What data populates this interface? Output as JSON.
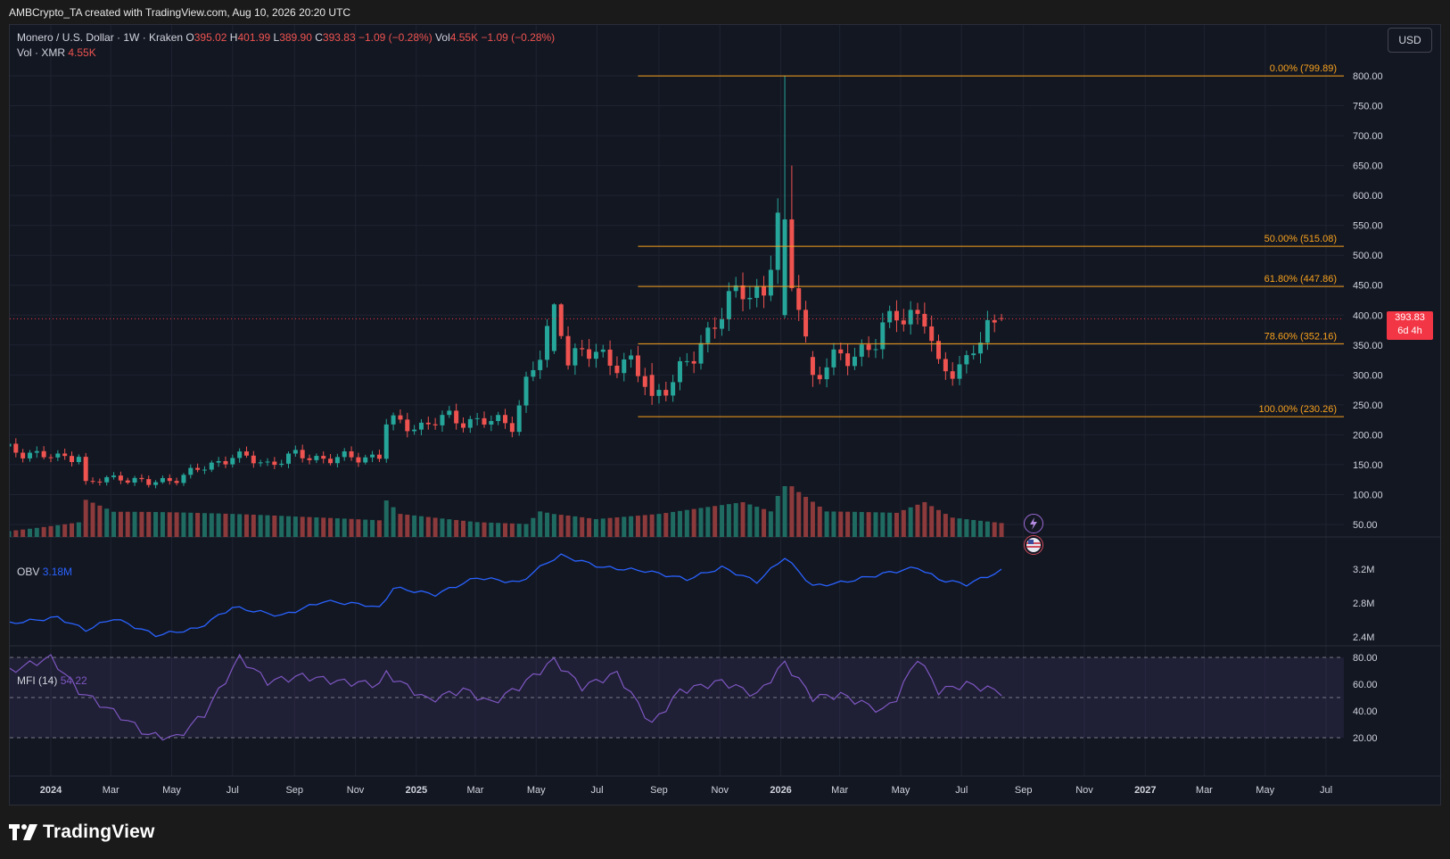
{
  "header": {
    "attribution": "AMBCrypto_TA created with TradingView.com, Aug 10, 2026 20:20 UTC"
  },
  "legend": {
    "symbol": "Monero / U.S. Dollar · 1W · Kraken",
    "o_label": "O",
    "o_value": "395.02",
    "h_label": "H",
    "h_value": "401.99",
    "l_label": "L",
    "l_value": "389.90",
    "c_label": "C",
    "c_value": "393.83",
    "change": "−1.09 (−0.28%)",
    "vol_label": "Vol",
    "vol_value": "4.55K",
    "vol_change": "−1.09 (−0.28%)",
    "vol_series_label": "Vol · XMR",
    "vol_series_value": "4.55K",
    "obv_label": "OBV",
    "obv_value": "3.18M",
    "mfi_label": "MFI (14)",
    "mfi_value": "54.22"
  },
  "currency_button": "USD",
  "price_badge": {
    "price": "393.83",
    "countdown": "6d 4h"
  },
  "logo_text": "TradingView",
  "colors": {
    "background": "#131722",
    "up": "#26a69a",
    "down": "#ef5350",
    "fib": "#f7a11d",
    "obv": "#2962ff",
    "mfi": "#7e57c2",
    "badge": "#f23645"
  },
  "chart_data": {
    "type": "candlestick",
    "symbol": "Monero / U.S. Dollar",
    "interval": "1W",
    "exchange": "Kraken",
    "price_axis": {
      "ticks": [
        "800.00",
        "750.00",
        "700.00",
        "650.00",
        "600.00",
        "550.00",
        "500.00",
        "450.00",
        "400.00",
        "350.00",
        "300.00",
        "250.00",
        "200.00",
        "150.00",
        "100.00",
        "50.00"
      ]
    },
    "x_axis_labels": [
      {
        "label": "2024",
        "date": "2024-01-01",
        "bold": true
      },
      {
        "label": "Mar",
        "date": "2024-03-01"
      },
      {
        "label": "May",
        "date": "2024-05-01"
      },
      {
        "label": "Jul",
        "date": "2024-07-01"
      },
      {
        "label": "Sep",
        "date": "2024-09-01"
      },
      {
        "label": "Nov",
        "date": "2024-11-01"
      },
      {
        "label": "2025",
        "date": "2025-01-01",
        "bold": true
      },
      {
        "label": "Mar",
        "date": "2025-03-01"
      },
      {
        "label": "May",
        "date": "2025-05-01"
      },
      {
        "label": "Jul",
        "date": "2025-07-01"
      },
      {
        "label": "Sep",
        "date": "2025-09-01"
      },
      {
        "label": "Nov",
        "date": "2025-11-01"
      },
      {
        "label": "2026",
        "date": "2026-01-01",
        "bold": true
      },
      {
        "label": "Mar",
        "date": "2026-03-01"
      },
      {
        "label": "May",
        "date": "2026-05-01"
      },
      {
        "label": "Jul",
        "date": "2026-07-01"
      },
      {
        "label": "Sep",
        "date": "2026-09-01"
      },
      {
        "label": "Nov",
        "date": "2026-11-01"
      },
      {
        "label": "2027",
        "date": "2027-01-01",
        "bold": true
      },
      {
        "label": "Mar",
        "date": "2027-03-01"
      },
      {
        "label": "May",
        "date": "2027-05-01"
      },
      {
        "label": "Jul",
        "date": "2027-07-01"
      }
    ],
    "fib_levels": [
      {
        "label": "0.00% (799.89)",
        "price": 799.89
      },
      {
        "label": "50.00% (515.08)",
        "price": 515.08
      },
      {
        "label": "61.80% (447.86)",
        "price": 447.86
      },
      {
        "label": "78.60% (352.16)",
        "price": 352.16
      },
      {
        "label": "100.00% (230.26)",
        "price": 230.26
      }
    ],
    "fib_start_date": "2025-08-11",
    "candle_keyframes": [
      [
        "2023-11-13",
        176
      ],
      [
        "2023-12-11",
        170
      ],
      [
        "2024-01-08",
        160
      ],
      [
        "2024-01-29",
        168
      ],
      [
        "2024-02-05",
        118
      ],
      [
        "2024-03-11",
        130
      ],
      [
        "2024-04-08",
        118
      ],
      [
        "2024-05-06",
        128
      ],
      [
        "2024-06-03",
        145
      ],
      [
        "2024-07-01",
        165
      ],
      [
        "2024-08-05",
        152
      ],
      [
        "2024-09-02",
        165
      ],
      [
        "2024-10-07",
        160
      ],
      [
        "2024-11-04",
        162
      ],
      [
        "2024-11-25",
        165
      ],
      [
        "2024-12-02",
        220
      ],
      [
        "2025-01-06",
        215
      ],
      [
        "2025-02-03",
        228
      ],
      [
        "2025-03-03",
        222
      ],
      [
        "2025-04-07",
        220
      ],
      [
        "2025-04-21",
        285
      ],
      [
        "2025-05-05",
        330
      ],
      [
        "2025-05-19",
        405
      ],
      [
        "2025-06-02",
        330
      ],
      [
        "2025-06-30",
        335
      ],
      [
        "2025-08-04",
        315
      ],
      [
        "2025-08-25",
        270
      ],
      [
        "2025-09-15",
        290
      ],
      [
        "2025-10-06",
        330
      ],
      [
        "2025-10-27",
        395
      ],
      [
        "2025-11-24",
        440
      ],
      [
        "2025-12-15",
        440
      ],
      [
        "2025-12-29",
        555
      ],
      [
        "2026-01-12",
        545
      ],
      [
        "2026-01-19",
        430
      ],
      [
        "2026-02-02",
        295
      ],
      [
        "2026-03-02",
        330
      ],
      [
        "2026-04-06",
        350
      ],
      [
        "2026-04-27",
        410
      ],
      [
        "2026-05-25",
        390
      ],
      [
        "2026-06-08",
        310
      ],
      [
        "2026-07-06",
        320
      ],
      [
        "2026-07-27",
        375
      ],
      [
        "2026-08-10",
        393.83
      ]
    ],
    "candle_overrides": [
      {
        "date": "2026-01-05",
        "open": 400,
        "high": 799.89,
        "low": 395,
        "close": 560
      },
      {
        "date": "2026-01-12",
        "open": 560,
        "high": 650,
        "low": 440,
        "close": 445
      },
      {
        "date": "2025-05-19",
        "open": 340,
        "high": 420,
        "low": 335,
        "close": 418
      },
      {
        "date": "2025-05-26",
        "open": 418,
        "high": 420,
        "low": 360,
        "close": 365
      },
      {
        "date": "2025-08-25",
        "open": 300,
        "high": 320,
        "low": 250,
        "close": 265
      },
      {
        "date": "2026-02-02",
        "open": 330,
        "high": 340,
        "low": 280,
        "close": 300
      }
    ],
    "volume_keyframes": [
      [
        "2023-11-13",
        12
      ],
      [
        "2024-01-29",
        28
      ],
      [
        "2024-02-05",
        70
      ],
      [
        "2024-03-04",
        45
      ],
      [
        "2024-06-03",
        38
      ],
      [
        "2024-09-02",
        32
      ],
      [
        "2024-11-25",
        28
      ],
      [
        "2024-12-02",
        62
      ],
      [
        "2024-12-16",
        40
      ],
      [
        "2025-03-03",
        30
      ],
      [
        "2025-04-21",
        30
      ],
      [
        "2025-05-05",
        58
      ],
      [
        "2025-05-19",
        50
      ],
      [
        "2025-06-30",
        35
      ],
      [
        "2025-09-01",
        40
      ],
      [
        "2025-11-24",
        55
      ],
      [
        "2025-12-22",
        40
      ],
      [
        "2026-01-05",
        88
      ],
      [
        "2026-01-19",
        70
      ],
      [
        "2026-02-16",
        40
      ],
      [
        "2026-04-27",
        40
      ],
      [
        "2026-05-25",
        60
      ],
      [
        "2026-06-22",
        35
      ],
      [
        "2026-08-10",
        28
      ]
    ],
    "obv_keyframes": [
      [
        "2023-11-13",
        2.55
      ],
      [
        "2024-01-08",
        2.63
      ],
      [
        "2024-02-05",
        2.48
      ],
      [
        "2024-03-04",
        2.62
      ],
      [
        "2024-04-15",
        2.42
      ],
      [
        "2024-05-27",
        2.5
      ],
      [
        "2024-07-01",
        2.75
      ],
      [
        "2024-08-19",
        2.65
      ],
      [
        "2024-09-30",
        2.82
      ],
      [
        "2024-11-11",
        2.78
      ],
      [
        "2024-11-25",
        2.74
      ],
      [
        "2024-12-09",
        2.98
      ],
      [
        "2025-01-20",
        2.9
      ],
      [
        "2025-03-03",
        3.1
      ],
      [
        "2025-04-14",
        3.04
      ],
      [
        "2025-05-12",
        3.28
      ],
      [
        "2025-05-26",
        3.36
      ],
      [
        "2025-07-07",
        3.22
      ],
      [
        "2025-08-18",
        3.18
      ],
      [
        "2025-09-29",
        3.08
      ],
      [
        "2025-11-03",
        3.22
      ],
      [
        "2025-12-08",
        3.05
      ],
      [
        "2026-01-05",
        3.34
      ],
      [
        "2026-02-02",
        3.0
      ],
      [
        "2026-03-02",
        3.04
      ],
      [
        "2026-04-20",
        3.16
      ],
      [
        "2026-05-18",
        3.22
      ],
      [
        "2026-06-08",
        3.08
      ],
      [
        "2026-07-06",
        3.02
      ],
      [
        "2026-08-10",
        3.18
      ]
    ],
    "obv_axis": [
      "3.2M",
      "2.8M",
      "2.4M"
    ],
    "mfi_keyframes": [
      [
        "2023-11-13",
        68
      ],
      [
        "2024-01-01",
        80
      ],
      [
        "2024-01-29",
        55
      ],
      [
        "2024-03-11",
        36
      ],
      [
        "2024-04-08",
        22
      ],
      [
        "2024-05-06",
        20
      ],
      [
        "2024-06-03",
        38
      ],
      [
        "2024-07-08",
        80
      ],
      [
        "2024-08-05",
        62
      ],
      [
        "2024-09-09",
        66
      ],
      [
        "2024-10-14",
        62
      ],
      [
        "2024-11-25",
        60
      ],
      [
        "2024-12-02",
        68
      ],
      [
        "2025-01-13",
        48
      ],
      [
        "2025-02-17",
        56
      ],
      [
        "2025-03-17",
        46
      ],
      [
        "2025-04-14",
        58
      ],
      [
        "2025-05-19",
        78
      ],
      [
        "2025-06-16",
        58
      ],
      [
        "2025-07-21",
        68
      ],
      [
        "2025-08-25",
        30
      ],
      [
        "2025-09-22",
        55
      ],
      [
        "2025-11-03",
        62
      ],
      [
        "2025-12-08",
        52
      ],
      [
        "2026-01-05",
        76
      ],
      [
        "2026-02-02",
        50
      ],
      [
        "2026-03-02",
        52
      ],
      [
        "2026-04-13",
        40
      ],
      [
        "2026-04-27",
        50
      ],
      [
        "2026-05-18",
        80
      ],
      [
        "2026-06-08",
        55
      ],
      [
        "2026-07-06",
        60
      ],
      [
        "2026-08-10",
        54.22
      ]
    ],
    "mfi_axis": [
      "80.00",
      "60.00",
      "40.00",
      "20.00"
    ],
    "last_price": 393.83
  }
}
